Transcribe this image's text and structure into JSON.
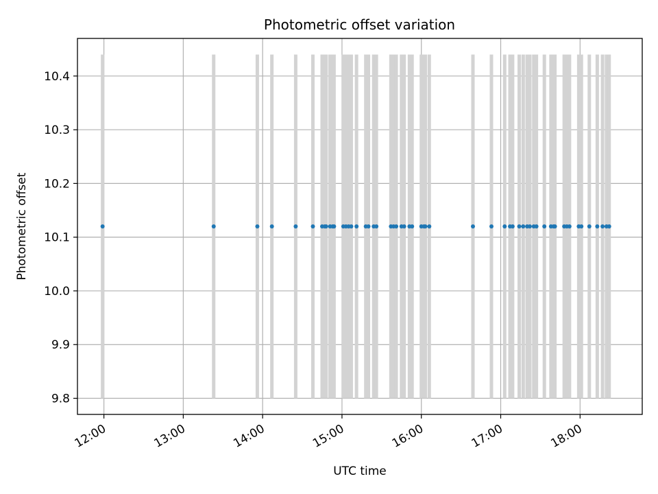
{
  "chart_data": {
    "type": "scatter",
    "title": "Photometric offset variation",
    "xlabel": "UTC time",
    "ylabel": "Photometric offset",
    "x_axis": {
      "type": "time",
      "range": [
        "11:40",
        "18:47"
      ],
      "ticks": [
        "12:00",
        "13:00",
        "14:00",
        "15:00",
        "16:00",
        "17:00",
        "18:00"
      ]
    },
    "y_axis": {
      "range": [
        9.77,
        10.47
      ],
      "ticks": [
        "9.8",
        "9.9",
        "10.0",
        "10.1",
        "10.2",
        "10.3",
        "10.4"
      ]
    },
    "grid": true,
    "colors": {
      "points": "#1f77b4",
      "error_bars": "#d3d3d3",
      "grid": "#b0b0b0"
    },
    "series": [
      {
        "y": 10.12,
        "yerr": 0.32,
        "x": [
          "11:59",
          "13:23",
          "13:56",
          "14:07",
          "14:25",
          "14:38",
          "14:45",
          "14:47",
          "14:48",
          "14:51",
          "14:53",
          "14:54",
          "15:01",
          "15:03",
          "15:05",
          "15:07",
          "15:11",
          "15:18",
          "15:20",
          "15:24",
          "15:26",
          "15:37",
          "15:39",
          "15:41",
          "15:45",
          "15:47",
          "15:51",
          "15:53",
          "16:00",
          "16:02",
          "16:03",
          "16:06",
          "16:39",
          "16:53",
          "17:03",
          "17:07",
          "17:09",
          "17:14",
          "17:17",
          "17:20",
          "17:22",
          "17:25",
          "17:27",
          "17:33",
          "17:38",
          "17:40",
          "17:41",
          "17:48",
          "17:50",
          "17:52",
          "17:59",
          "18:01",
          "18:07",
          "18:13",
          "18:17",
          "18:20",
          "18:22"
        ]
      }
    ]
  }
}
